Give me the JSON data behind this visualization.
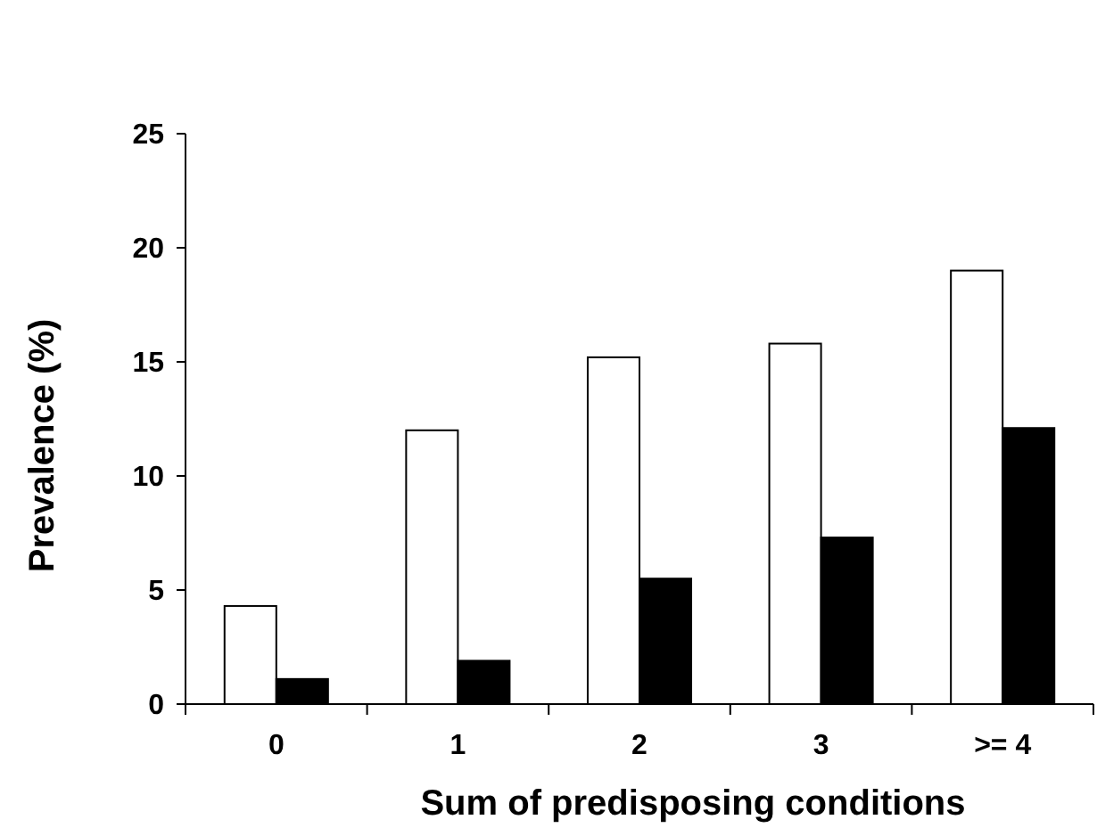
{
  "chart_data": {
    "type": "bar",
    "xlabel": "Sum of predisposing conditions",
    "ylabel": "Prevalence (%)",
    "categories": [
      "0",
      "1",
      "2",
      "3",
      ">= 4"
    ],
    "series": [
      {
        "color": "#ffffff",
        "values": [
          4.3,
          12.0,
          15.2,
          15.8,
          19.0
        ]
      },
      {
        "color": "#000000",
        "values": [
          1.1,
          1.9,
          5.5,
          7.3,
          12.1
        ]
      }
    ],
    "ylim": [
      0,
      25
    ],
    "yticks": [
      0,
      5,
      10,
      15,
      20,
      25
    ],
    "grid": false
  }
}
